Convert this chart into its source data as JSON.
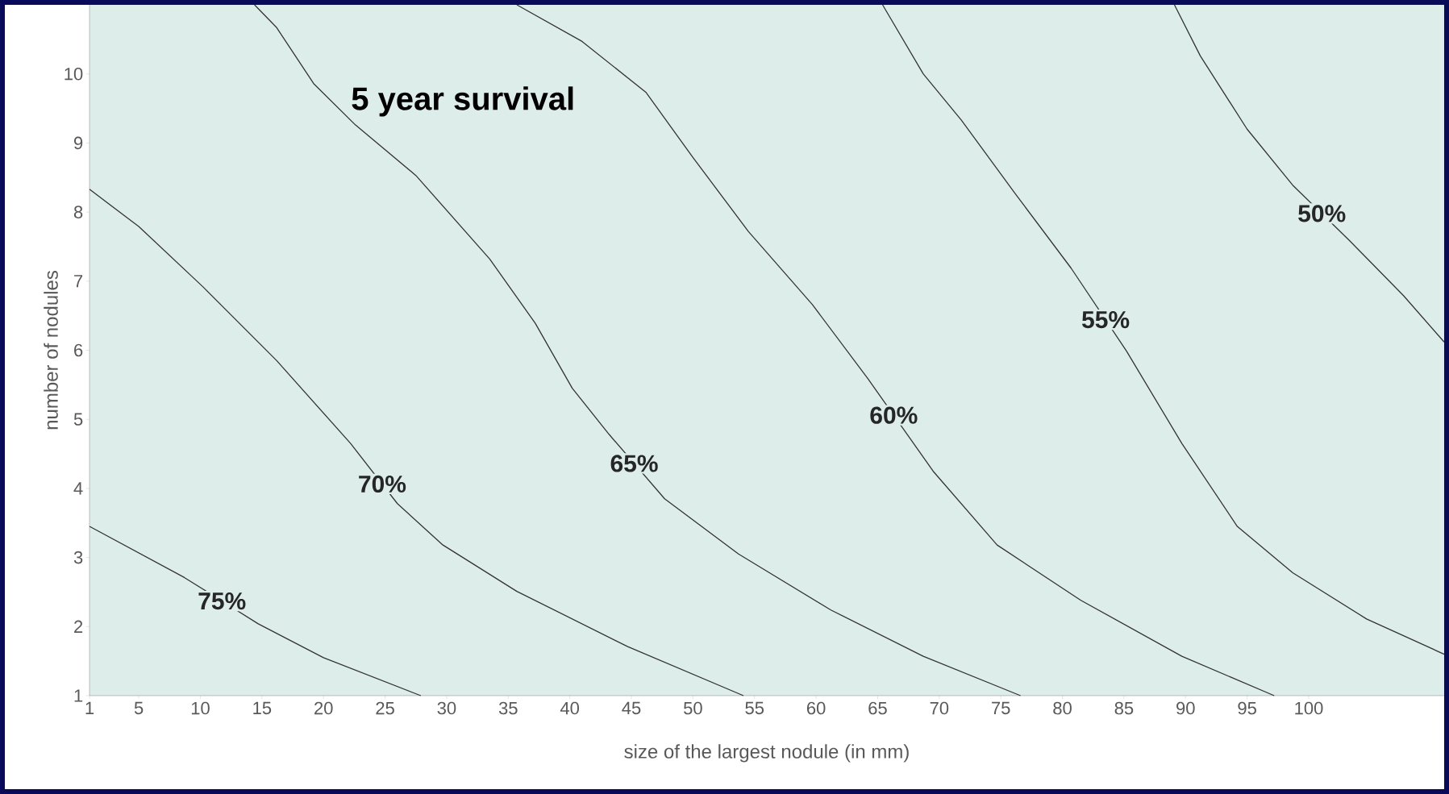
{
  "chart_data": {
    "type": "line",
    "title": "5 year survival",
    "xlabel": "size of the largest nodule (in mm)",
    "ylabel": "number of nodules",
    "xlim": [
      1,
      111
    ],
    "ylim": [
      1,
      11
    ],
    "xticks": [
      1,
      5,
      10,
      15,
      20,
      25,
      30,
      35,
      40,
      45,
      50,
      55,
      60,
      65,
      70,
      75,
      80,
      85,
      90,
      95,
      100
    ],
    "yticks": [
      1,
      2,
      3,
      4,
      5,
      6,
      7,
      8,
      9,
      10
    ],
    "grid": false,
    "legend": false,
    "marker": "none",
    "line_style": "solid",
    "series": [
      {
        "name": "75%",
        "color": "#333333",
        "x": [
          1,
          8.7,
          14.7,
          20,
          27.9
        ],
        "values": [
          3.45,
          2.71,
          2.04,
          1.55,
          1
        ]
      },
      {
        "name": "70%",
        "color": "#333333",
        "x": [
          1,
          5,
          10.2,
          16.2,
          22.2,
          26,
          29.7,
          35.7,
          44.7,
          54.1
        ],
        "values": [
          8.33,
          7.79,
          6.92,
          5.85,
          4.65,
          3.78,
          3.18,
          2.51,
          1.71,
          1
        ]
      },
      {
        "name": "65%",
        "color": "#333333",
        "x": [
          14.4,
          16.2,
          19.2,
          22.6,
          27.5,
          33.5,
          37.2,
          40.2,
          43.2,
          47.7,
          53.7,
          61.2,
          68.7,
          76.6
        ],
        "values": [
          11,
          10.67,
          9.86,
          9.26,
          8.53,
          7.32,
          6.39,
          5.45,
          4.78,
          3.85,
          3.05,
          2.24,
          1.57,
          1
        ]
      },
      {
        "name": "60%",
        "color": "#333333",
        "x": [
          35.7,
          41,
          46.2,
          50,
          54.5,
          59.7,
          64.2,
          69.5,
          74.7,
          81.5,
          89.7,
          97.2
        ],
        "values": [
          11,
          10.47,
          9.73,
          8.79,
          7.72,
          6.66,
          5.59,
          4.25,
          3.18,
          2.38,
          1.57,
          1
        ]
      },
      {
        "name": "55%",
        "color": "#333333",
        "x": [
          65.4,
          68.7,
          71.8,
          76.2,
          80.7,
          85.2,
          89.7,
          94.2,
          98.7,
          104.7,
          111
        ],
        "values": [
          11,
          10,
          9.33,
          8.26,
          7.19,
          5.99,
          4.65,
          3.45,
          2.78,
          2.11,
          1.6
        ]
      },
      {
        "name": "50%",
        "color": "#333333",
        "x": [
          89.1,
          91.2,
          95,
          98.7,
          103.3,
          107.7,
          111
        ],
        "values": [
          11,
          10.26,
          9.2,
          8.39,
          7.59,
          6.79,
          6.12
        ]
      }
    ]
  }
}
